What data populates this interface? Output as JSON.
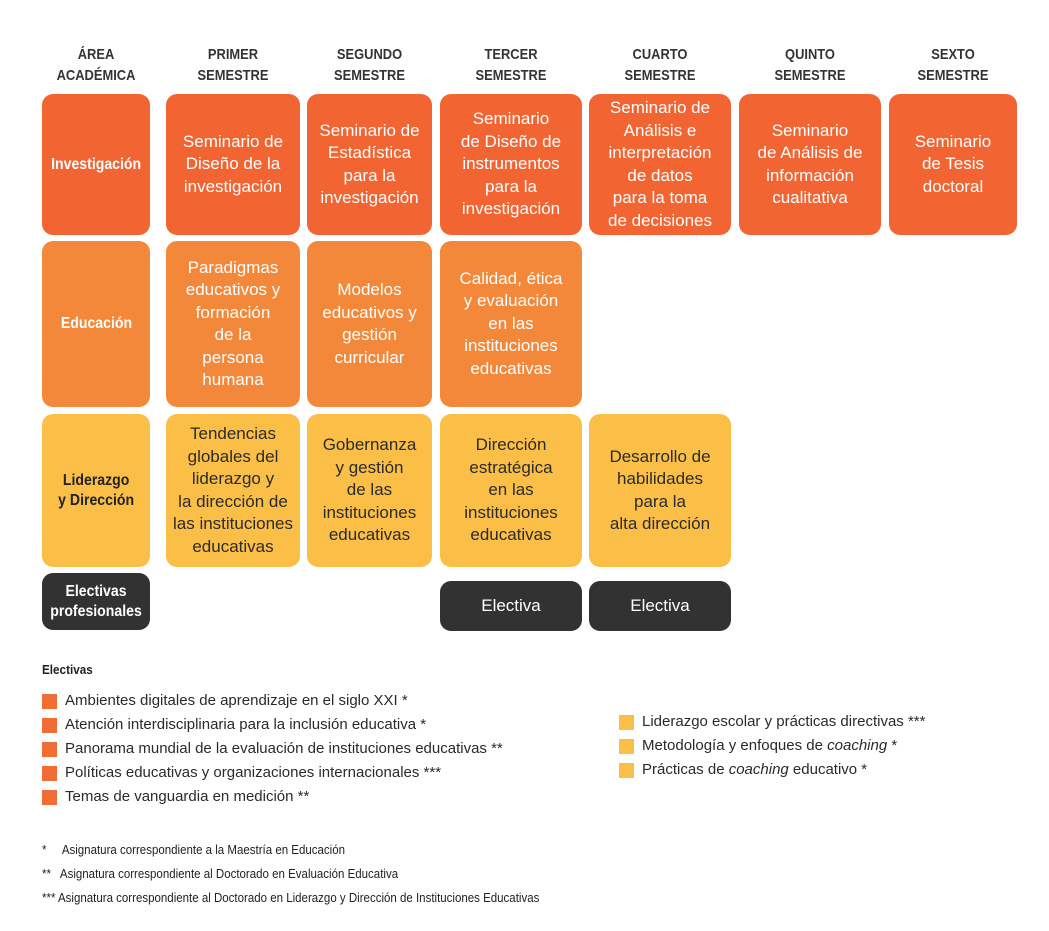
{
  "headers": [
    "ÁREA\nACADÉMICA",
    "PRIMER\nSEMESTRE",
    "SEGUNDO\nSEMESTRE",
    "TERCER\nSEMESTRE",
    "CUARTO\nSEMESTRE",
    "QUINTO\nSEMESTRE",
    "SEXTO\nSEMESTRE"
  ],
  "areas": {
    "investigacion": "Investigación",
    "educacion": "Educación",
    "liderazgo": "Liderazgo\ny Dirección",
    "electivas": "Electivas\nprofesionales"
  },
  "investigacion": [
    "Seminario de\nDiseño de la\ninvestigación",
    "Seminario de\nEstadística\npara la\ninvestigación",
    "Seminario\nde Diseño de\ninstrumentos\npara la\ninvestigación",
    "Seminario de\nAnálisis e\ninterpretación\nde datos\npara la toma\nde decisiones",
    "Seminario\nde Análisis de\ninformación\ncualitativa",
    "Seminario\nde Tesis\ndoctoral"
  ],
  "educacion": [
    "Paradigmas\neducativos y\nformación\nde la\npersona\nhumana",
    "Modelos\neducativos y\ngestión\ncurricular",
    "Calidad, ética\ny evaluación\nen las\ninstituciones\neducativas"
  ],
  "liderazgo": [
    "Tendencias\nglobales del\nliderazgo y\nla dirección de\nlas instituciones\neducativas",
    "Gobernanza\ny gestión\nde las\ninstituciones\neducativas",
    "Dirección\nestratégica\nen las\ninstituciones\neducativas",
    "Desarrollo de\nhabilidades\npara la\nalta dirección"
  ],
  "electiva_cells": [
    "Electiva",
    "Electiva"
  ],
  "electivas_title": "Electivas",
  "legend_left": [
    {
      "pre": "Ambientes digitales de aprendizaje en el siglo XXI *",
      "em": "",
      "post": ""
    },
    {
      "pre": "Atención interdisciplinaria para la inclusión educativa *",
      "em": "",
      "post": ""
    },
    {
      "pre": "Panorama mundial de la evaluación de instituciones educativas **",
      "em": "",
      "post": ""
    },
    {
      "pre": "Políticas educativas y organizaciones internacionales ***",
      "em": "",
      "post": ""
    },
    {
      "pre": "Temas de vanguardia en medición **",
      "em": "",
      "post": ""
    }
  ],
  "legend_right": [
    {
      "pre": "Liderazgo escolar y prácticas directivas ***",
      "em": "",
      "post": ""
    },
    {
      "pre": "Metodología y enfoques de ",
      "em": "coaching",
      "post": " *"
    },
    {
      "pre": "Prácticas de ",
      "em": "coaching",
      "post": " educativo *"
    }
  ],
  "footnotes": [
    "*     Asignatura correspondiente a la Maestría en Educación",
    "**   Asignatura correspondiente al Doctorado en Evaluación Educativa",
    "*** Asignatura correspondiente al Doctorado en Liderazgo y Dirección de Instituciones Educativas"
  ],
  "colors": {
    "investigacion": "#f26432",
    "educacion": "#f4883a",
    "liderazgo": "#fbbf47",
    "electivas": "#333233"
  }
}
